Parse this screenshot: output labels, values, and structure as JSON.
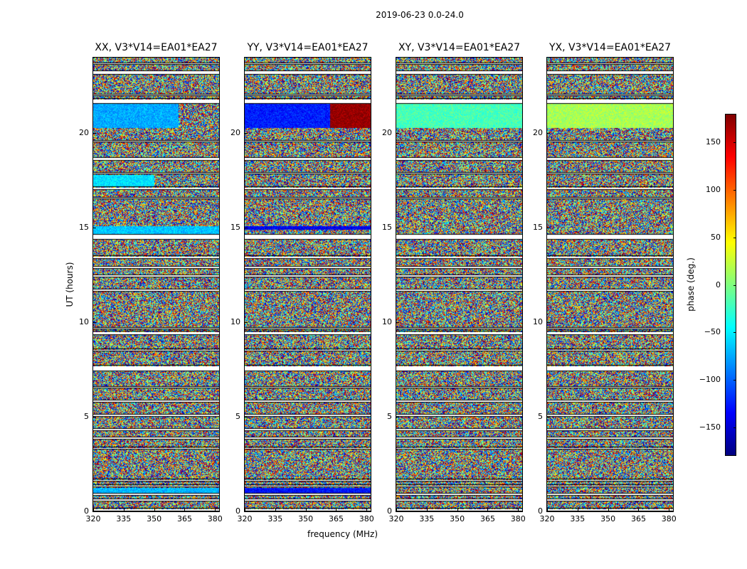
{
  "figure": {
    "suptitle": "2019-06-23 0.0-24.0",
    "xlabel": "frequency (MHz)",
    "ylabel": "UT (hours)"
  },
  "chart_data": {
    "type": "heatmap",
    "title": "2019-06-23 0.0-24.0",
    "xlabel": "frequency (MHz)",
    "ylabel": "UT (hours)",
    "xlim": [
      320,
      382
    ],
    "ylim": [
      0,
      24
    ],
    "x_ticks": [
      "320",
      "335",
      "350",
      "365",
      "380"
    ],
    "y_ticks": [
      "0",
      "5",
      "10",
      "15",
      "20"
    ],
    "panels": [
      {
        "name": "XX",
        "title": "XX, V3*V14=EA01*EA27"
      },
      {
        "name": "YY",
        "title": "YY, V3*V14=EA01*EA27"
      },
      {
        "name": "XY",
        "title": "XY, V3*V14=EA01*EA27"
      },
      {
        "name": "YX",
        "title": "YX, V3*V14=EA01*EA27"
      }
    ],
    "colorbar": {
      "label": "phase (deg.)",
      "range": [
        -180,
        180
      ],
      "ticks": [
        "150",
        "100",
        "50",
        "0",
        "−50",
        "−100",
        "−150"
      ],
      "tick_values": [
        150,
        100,
        50,
        0,
        -50,
        -100,
        -150
      ],
      "colormap": "jet"
    },
    "flagged_ut_ranges": [
      [
        0.05,
        0.15
      ],
      [
        0.55,
        0.65
      ],
      [
        0.85,
        0.95
      ],
      [
        1.3,
        1.38
      ],
      [
        1.6,
        1.68
      ],
      [
        3.3,
        3.38
      ],
      [
        3.85,
        3.93
      ],
      [
        4.3,
        4.38
      ],
      [
        5.05,
        5.13
      ],
      [
        5.8,
        5.88
      ],
      [
        6.55,
        6.6
      ],
      [
        7.45,
        7.7
      ],
      [
        8.5,
        8.56
      ],
      [
        9.35,
        9.5
      ],
      [
        9.65,
        9.72
      ],
      [
        11.65,
        11.75
      ],
      [
        12.4,
        12.5
      ],
      [
        12.85,
        12.95
      ],
      [
        13.4,
        13.5
      ],
      [
        14.4,
        14.65
      ],
      [
        16.55,
        16.6
      ],
      [
        17.05,
        17.15
      ],
      [
        17.85,
        17.92
      ],
      [
        18.6,
        18.7
      ],
      [
        19.55,
        19.6
      ],
      [
        21.6,
        21.8
      ],
      [
        22.0,
        22.06
      ],
      [
        23.15,
        23.3
      ],
      [
        23.65,
        23.7
      ]
    ],
    "coherent_phase_segments": [
      {
        "panel": "XX",
        "ut": [
          20.3,
          21.6
        ],
        "freq": [
          320,
          362
        ],
        "phase_deg": -75
      },
      {
        "panel": "XX",
        "ut": [
          0.95,
          1.25
        ],
        "freq": [
          320,
          382
        ],
        "phase_deg": -70
      },
      {
        "panel": "XX",
        "ut": [
          14.7,
          15.1
        ],
        "freq": [
          320,
          382
        ],
        "phase_deg": -65
      },
      {
        "panel": "XX",
        "ut": [
          17.2,
          17.8
        ],
        "freq": [
          320,
          350
        ],
        "phase_deg": -55
      },
      {
        "panel": "YY",
        "ut": [
          20.3,
          21.6
        ],
        "freq": [
          320,
          362
        ],
        "phase_deg": -125
      },
      {
        "panel": "YY",
        "ut": [
          20.3,
          21.6
        ],
        "freq": [
          362,
          382
        ],
        "phase_deg": 175
      },
      {
        "panel": "YY",
        "ut": [
          0.95,
          1.25
        ],
        "freq": [
          320,
          382
        ],
        "phase_deg": -130
      },
      {
        "panel": "YY",
        "ut": [
          14.9,
          15.1
        ],
        "freq": [
          320,
          382
        ],
        "phase_deg": -140
      },
      {
        "panel": "XY",
        "ut": [
          20.3,
          21.6
        ],
        "freq": [
          320,
          382
        ],
        "phase_deg": -20
      },
      {
        "panel": "YX",
        "ut": [
          20.3,
          21.6
        ],
        "freq": [
          320,
          382
        ],
        "phase_deg": 15
      }
    ],
    "colors": {
      "frame": "#000000",
      "background": "#ffffff"
    }
  }
}
